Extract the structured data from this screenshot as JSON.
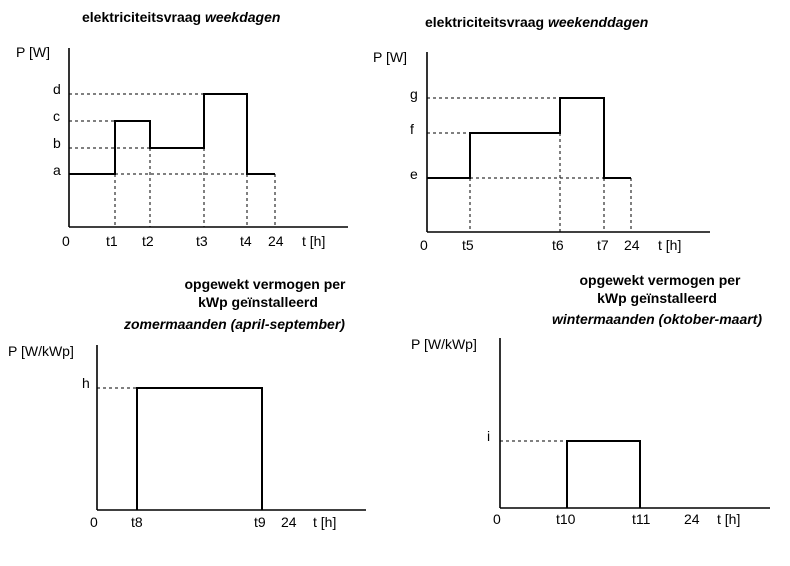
{
  "diagrams": [
    {
      "title_main": "elektriciteitsvraag ",
      "title_emph": "weekdagen",
      "ylabel": "P [W]",
      "origin": "0",
      "xlabel": "t [h]",
      "levels": [
        "a",
        "b",
        "c",
        "d"
      ],
      "ticks": [
        "t1",
        "t2",
        "t3",
        "t4",
        "24"
      ]
    },
    {
      "title_main": "elektriciteitsvraag ",
      "title_emph": "weekenddagen",
      "ylabel": "P [W]",
      "origin": "0",
      "xlabel": "t [h]",
      "levels": [
        "e",
        "f",
        "g"
      ],
      "ticks": [
        "t5",
        "t6",
        "t7",
        "24"
      ]
    },
    {
      "title_line1": "opgewekt vermogen per",
      "title_line2": "kWp geïnstalleerd",
      "title_line3": "zomermaanden (april-september)",
      "ylabel": "P [W/kWp]",
      "origin": "0",
      "xlabel": "t [h]",
      "levels": [
        "h"
      ],
      "ticks": [
        "t8",
        "t9",
        "24"
      ]
    },
    {
      "title_line1": "opgewekt vermogen per",
      "title_line2": "kWp geïnstalleerd",
      "title_line3": "wintermaanden (oktober-maart)",
      "ylabel": "P [W/kWp]",
      "origin": "0",
      "xlabel": "t [h]",
      "levels": [
        "i"
      ],
      "ticks": [
        "t10",
        "t11",
        "24"
      ]
    }
  ]
}
